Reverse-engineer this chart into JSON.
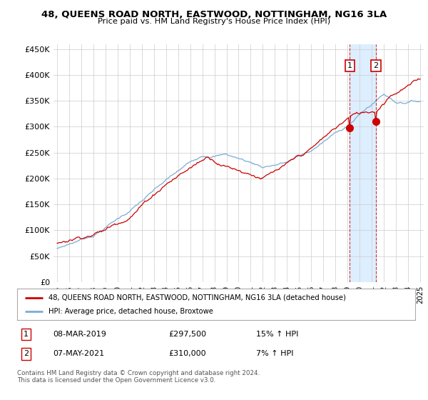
{
  "title": "48, QUEENS ROAD NORTH, EASTWOOD, NOTTINGHAM, NG16 3LA",
  "subtitle": "Price paid vs. HM Land Registry's House Price Index (HPI)",
  "red_label": "48, QUEENS ROAD NORTH, EASTWOOD, NOTTINGHAM, NG16 3LA (detached house)",
  "blue_label": "HPI: Average price, detached house, Broxtowe",
  "ylabel_ticks": [
    "£0",
    "£50K",
    "£100K",
    "£150K",
    "£200K",
    "£250K",
    "£300K",
    "£350K",
    "£400K",
    "£450K"
  ],
  "ytick_values": [
    0,
    50000,
    100000,
    150000,
    200000,
    250000,
    300000,
    350000,
    400000,
    450000
  ],
  "xstart_year": 1995,
  "xend_year": 2025,
  "marker1": {
    "label": "1",
    "date": "08-MAR-2019",
    "price": "£297,500",
    "hpi": "15% ↑ HPI",
    "year": 2019.18,
    "value": 297500
  },
  "marker2": {
    "label": "2",
    "date": "07-MAY-2021",
    "price": "£310,000",
    "hpi": "7% ↑ HPI",
    "year": 2021.35,
    "value": 310000
  },
  "red_color": "#cc0000",
  "blue_color": "#7aadd4",
  "shade_color": "#ddeeff",
  "grid_color": "#cccccc",
  "bg_color": "#ffffff",
  "footnote": "Contains HM Land Registry data © Crown copyright and database right 2024.\nThis data is licensed under the Open Government Licence v3.0.",
  "marker_box_color": "#cc0000"
}
